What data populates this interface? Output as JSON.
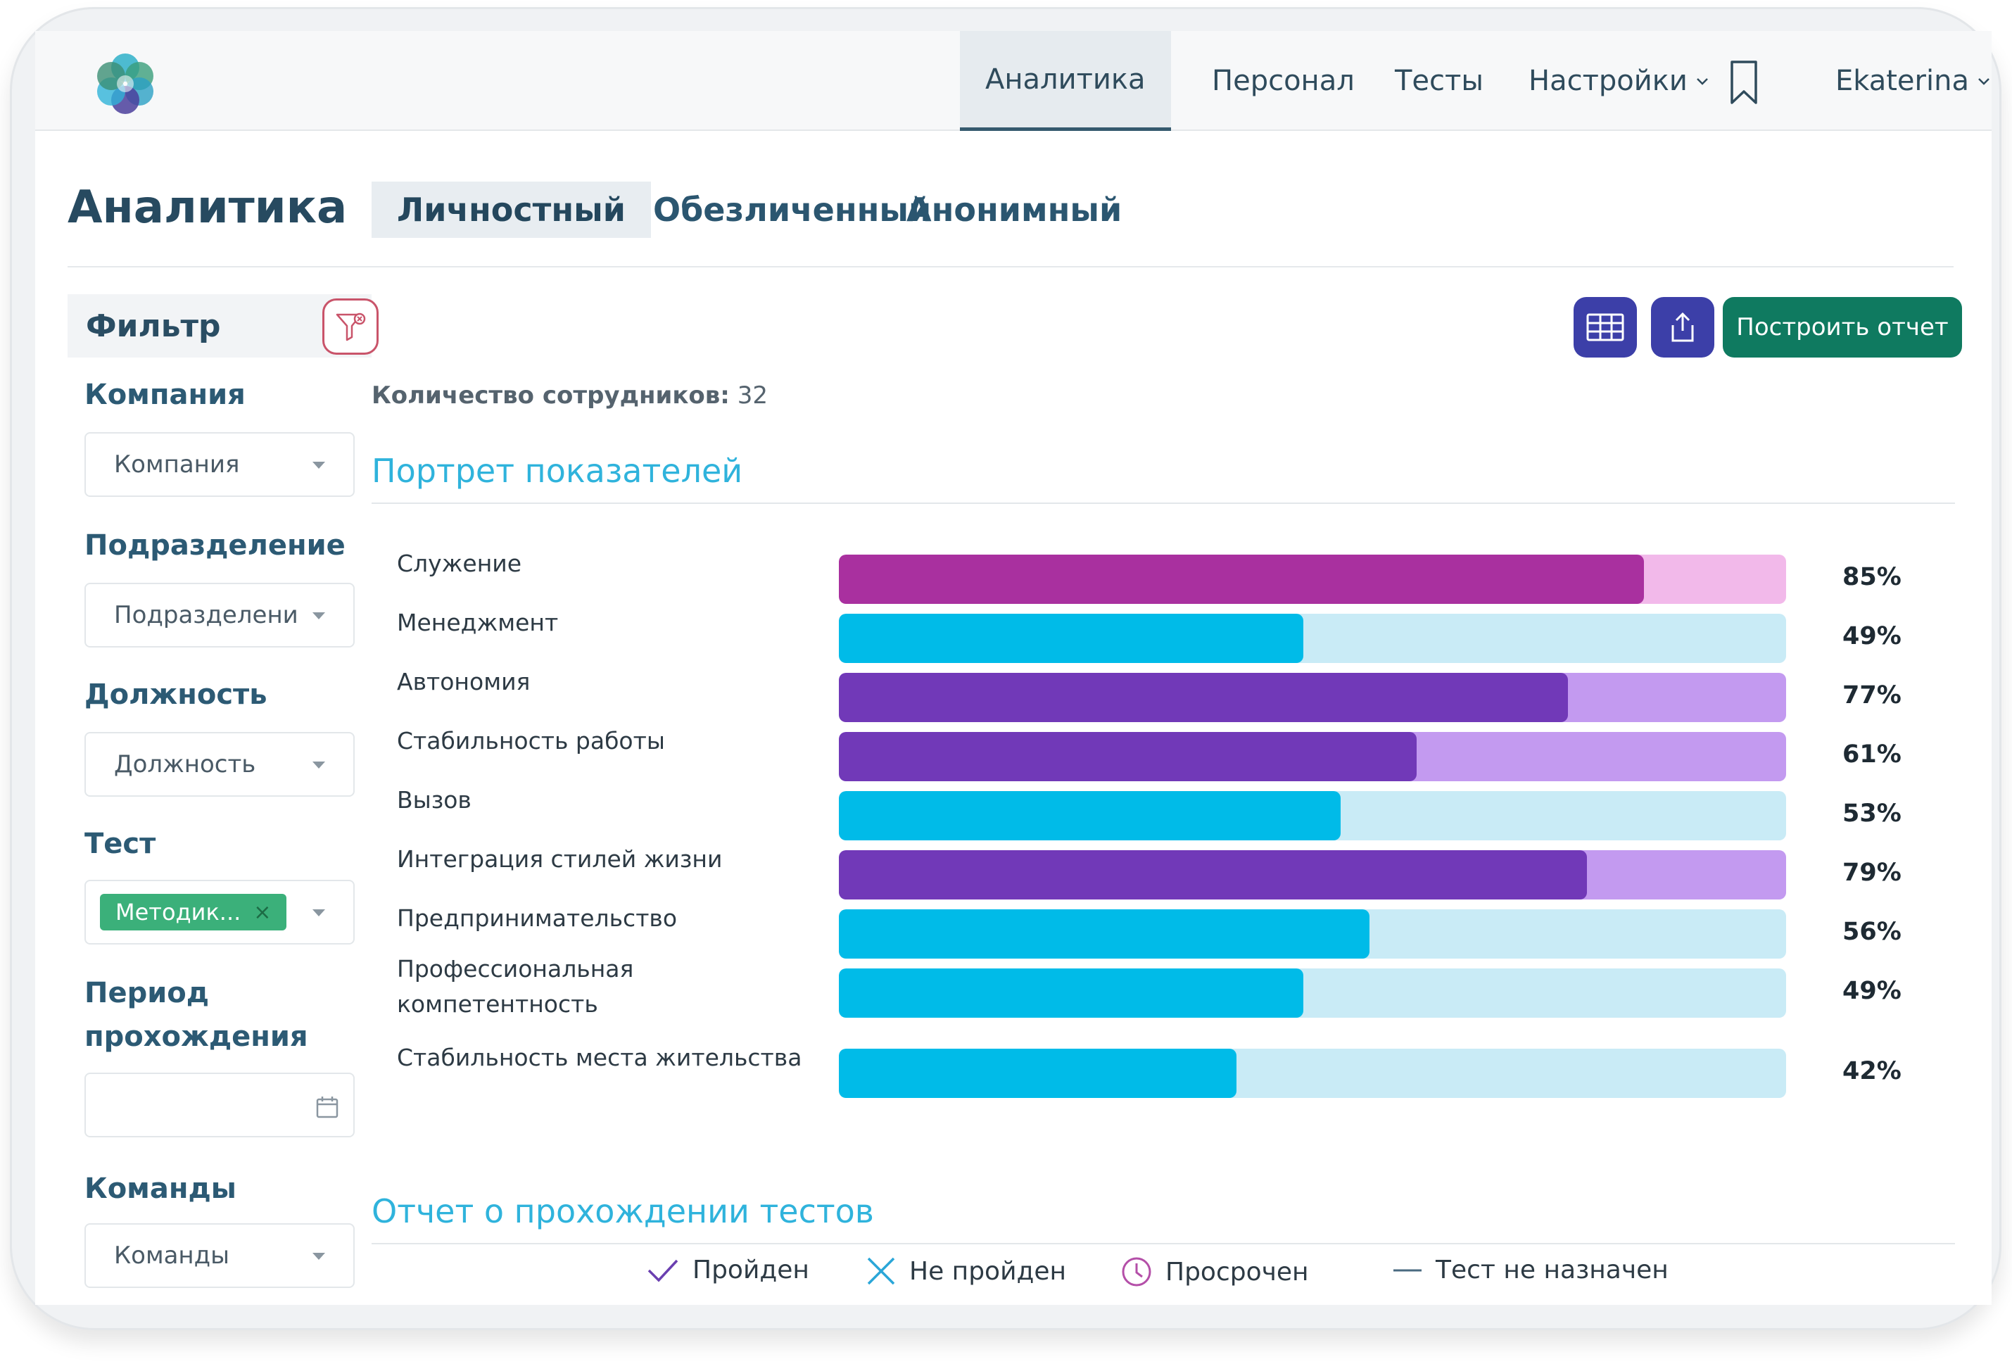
{
  "nav": {
    "items": [
      {
        "label": "Аналитика",
        "active": true
      },
      {
        "label": "Персонал",
        "active": false
      },
      {
        "label": "Тесты",
        "active": false
      },
      {
        "label": "Настройки",
        "dropdown": true
      },
      {
        "label": "Ekaterina",
        "dropdown": true
      }
    ]
  },
  "page": {
    "title": "Аналитика",
    "tabs": [
      {
        "label": "Личностный",
        "active": true
      },
      {
        "label": "Обезличенный",
        "active": false
      },
      {
        "label": "Анонимный",
        "active": false
      }
    ]
  },
  "filter": {
    "title": "Фильтр",
    "company": {
      "label": "Компания",
      "placeholder": "Компания"
    },
    "department": {
      "label": "Подразделение",
      "placeholder": "Подразделени"
    },
    "position": {
      "label": "Должность",
      "placeholder": "Должность"
    },
    "test": {
      "label": "Тест",
      "tag": "Методик...",
      "tag_remove": "×"
    },
    "period": {
      "label_line1": "Период",
      "label_line2": "прохождения",
      "value": ""
    },
    "teams": {
      "label": "Команды",
      "placeholder": "Команды"
    }
  },
  "toolbar": {
    "table_icon": "table-icon",
    "export_icon": "export-icon",
    "build_report": "Построить отчет"
  },
  "summary": {
    "count_label": "Количество сотрудников:",
    "count_value": " 32"
  },
  "portrait": {
    "title": "Портрет показателей"
  },
  "colors": {
    "magenta_fill": "#a9309f",
    "magenta_track": "#f2b9ea",
    "cyan_fill": "#00bbe8",
    "cyan_track": "#c9ebf6",
    "purple_fill": "#7139b8",
    "purple_track": "#c39af0"
  },
  "chart_data": {
    "type": "bar",
    "orientation": "horizontal",
    "ylim": [
      0,
      100
    ],
    "categories": [
      "Служение",
      "Менеджмент",
      "Автономия",
      "Стабильность работы",
      "Вызов",
      "Интеграция стилей жизни",
      "Предпринимательство",
      "Профессиональная компетентность",
      "Стабильность места жительства"
    ],
    "values": [
      85,
      49,
      77,
      61,
      53,
      79,
      56,
      49,
      42
    ],
    "value_labels": [
      "85%",
      "49%",
      "77%",
      "61%",
      "53%",
      "79%",
      "56%",
      "49%",
      "42%"
    ],
    "bar_colors": [
      "magenta",
      "cyan",
      "purple",
      "purple",
      "cyan",
      "purple",
      "cyan",
      "cyan",
      "cyan"
    ]
  },
  "report": {
    "title": "Отчет о прохождении тестов",
    "legend": [
      {
        "icon": "check-icon",
        "label": "Пройден"
      },
      {
        "icon": "cross-icon",
        "label": "Не пройден"
      },
      {
        "icon": "clock-icon",
        "label": "Просрочен"
      },
      {
        "icon": "dash-icon",
        "label": "Тест не назначен"
      }
    ]
  }
}
